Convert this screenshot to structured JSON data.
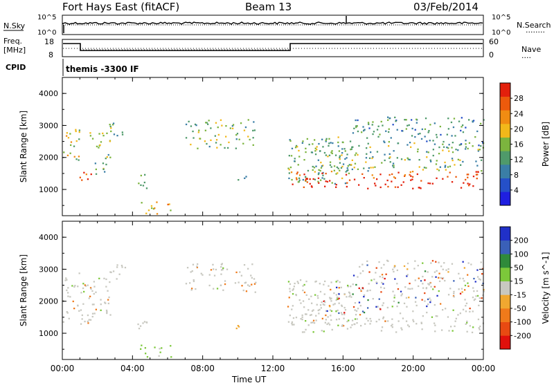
{
  "header": {
    "title": "Fort Hays East (fitACF)",
    "beam": "Beam 13",
    "date": "03/Feb/2014"
  },
  "top_panels": {
    "nsky_label": "N.Sky",
    "nsearch_label": "N.Search",
    "nsearch_dots": "........",
    "noise_ticks": [
      "10^5",
      "10^0"
    ],
    "freq_label_1": "Freq.",
    "freq_label_2": "[MHz]",
    "freq_ticks": [
      "18",
      "8"
    ],
    "nave_label": "Nave",
    "nave_dots": "....",
    "nave_ticks": [
      "60",
      "0"
    ],
    "cpid_label": "CPID",
    "cpid_text": "themis -3300 IF"
  },
  "chart_data": [
    {
      "type": "heatmap",
      "name": "power",
      "xlabel": "",
      "ylabel": "Slant Range [km]",
      "x_ticks": [
        "00:00",
        "04:00",
        "08:00",
        "12:00",
        "16:00",
        "20:00",
        "00:00"
      ],
      "y_ticks": [
        "1000",
        "2000",
        "3000",
        "4000"
      ],
      "xlim_hours": [
        0,
        24
      ],
      "ylim_km": [
        180,
        4500
      ],
      "colorbar": {
        "label": "Power [dB]",
        "ticks": [
          "4",
          "8",
          "12",
          "16",
          "20",
          "24",
          "28"
        ],
        "range": [
          0,
          30
        ],
        "colors": [
          "#1f1fe0",
          "#2550c8",
          "#3a7ea6",
          "#4f9a6a",
          "#7cb43e",
          "#f2b81a",
          "#f08c12",
          "#ec5a0c",
          "#e3200c"
        ]
      },
      "regions": [
        {
          "t0": 0.0,
          "t1": 1.0,
          "r0": 1700,
          "r1": 2900,
          "level": 0.55
        },
        {
          "t0": 0.9,
          "t1": 1.8,
          "r0": 1300,
          "r1": 1700,
          "level": 0.85
        },
        {
          "t0": 1.5,
          "t1": 2.7,
          "r0": 1500,
          "r1": 2800,
          "level": 0.45
        },
        {
          "t0": 2.6,
          "t1": 3.8,
          "r0": 2700,
          "r1": 3200,
          "level": 0.35
        },
        {
          "t0": 4.4,
          "t1": 6.2,
          "r0": 250,
          "r1": 650,
          "level": 0.7
        },
        {
          "t0": 4.0,
          "t1": 4.8,
          "r0": 1000,
          "r1": 1500,
          "level": 0.3
        },
        {
          "t0": 7.0,
          "t1": 11.0,
          "r0": 2300,
          "r1": 3200,
          "level": 0.4
        },
        {
          "t0": 9.8,
          "t1": 10.5,
          "r0": 1150,
          "r1": 1450,
          "level": 0.3
        },
        {
          "t0": 12.8,
          "t1": 16.5,
          "r0": 1200,
          "r1": 2700,
          "level": 0.35
        },
        {
          "t0": 13.0,
          "t1": 24.0,
          "r0": 1050,
          "r1": 1600,
          "level": 0.9
        },
        {
          "t0": 14.0,
          "t1": 24.0,
          "r0": 1600,
          "r1": 2500,
          "level": 0.4
        },
        {
          "t0": 16.5,
          "t1": 24.0,
          "r0": 2400,
          "r1": 3300,
          "level": 0.25
        }
      ]
    },
    {
      "type": "heatmap",
      "name": "velocity",
      "xlabel": "Time UT",
      "ylabel": "Slant Range [km]",
      "x_ticks": [
        "00:00",
        "04:00",
        "08:00",
        "12:00",
        "16:00",
        "20:00",
        "00:00"
      ],
      "y_ticks": [
        "1000",
        "2000",
        "3000",
        "4000"
      ],
      "xlim_hours": [
        0,
        24
      ],
      "ylim_km": [
        180,
        4500
      ],
      "colorbar": {
        "label": "Velocity [m s^-1]",
        "ticks": [
          "200",
          "100",
          "50",
          "15",
          "-15",
          "-50",
          "-100",
          "-200"
        ],
        "colors": [
          "#2030c8",
          "#3a60b8",
          "#2f8a3a",
          "#7cc83a",
          "#c8c8c0",
          "#f0a830",
          "#f07a1a",
          "#e84a12",
          "#e0100c"
        ]
      },
      "regions": [
        {
          "t0": 0.0,
          "t1": 1.8,
          "r0": 1300,
          "r1": 2900,
          "class": "gray"
        },
        {
          "t0": 1.5,
          "t1": 2.7,
          "r0": 1500,
          "r1": 2800,
          "class": "gray"
        },
        {
          "t0": 2.6,
          "t1": 3.8,
          "r0": 2700,
          "r1": 3200,
          "class": "gray"
        },
        {
          "t0": 4.4,
          "t1": 6.2,
          "r0": 250,
          "r1": 650,
          "class": "green"
        },
        {
          "t0": 4.0,
          "t1": 4.8,
          "r0": 1000,
          "r1": 1500,
          "class": "gray"
        },
        {
          "t0": 7.0,
          "t1": 11.0,
          "r0": 2300,
          "r1": 3200,
          "class": "gray"
        },
        {
          "t0": 9.8,
          "t1": 10.5,
          "r0": 1150,
          "r1": 1450,
          "class": "orange"
        },
        {
          "t0": 12.8,
          "t1": 16.5,
          "r0": 1200,
          "r1": 2700,
          "class": "gray"
        },
        {
          "t0": 13.0,
          "t1": 24.0,
          "r0": 1050,
          "r1": 1600,
          "class": "gray"
        },
        {
          "t0": 14.0,
          "t1": 24.0,
          "r0": 1600,
          "r1": 2500,
          "class": "mixed"
        },
        {
          "t0": 16.5,
          "t1": 24.0,
          "r0": 2400,
          "r1": 3300,
          "class": "mixed"
        }
      ]
    }
  ]
}
